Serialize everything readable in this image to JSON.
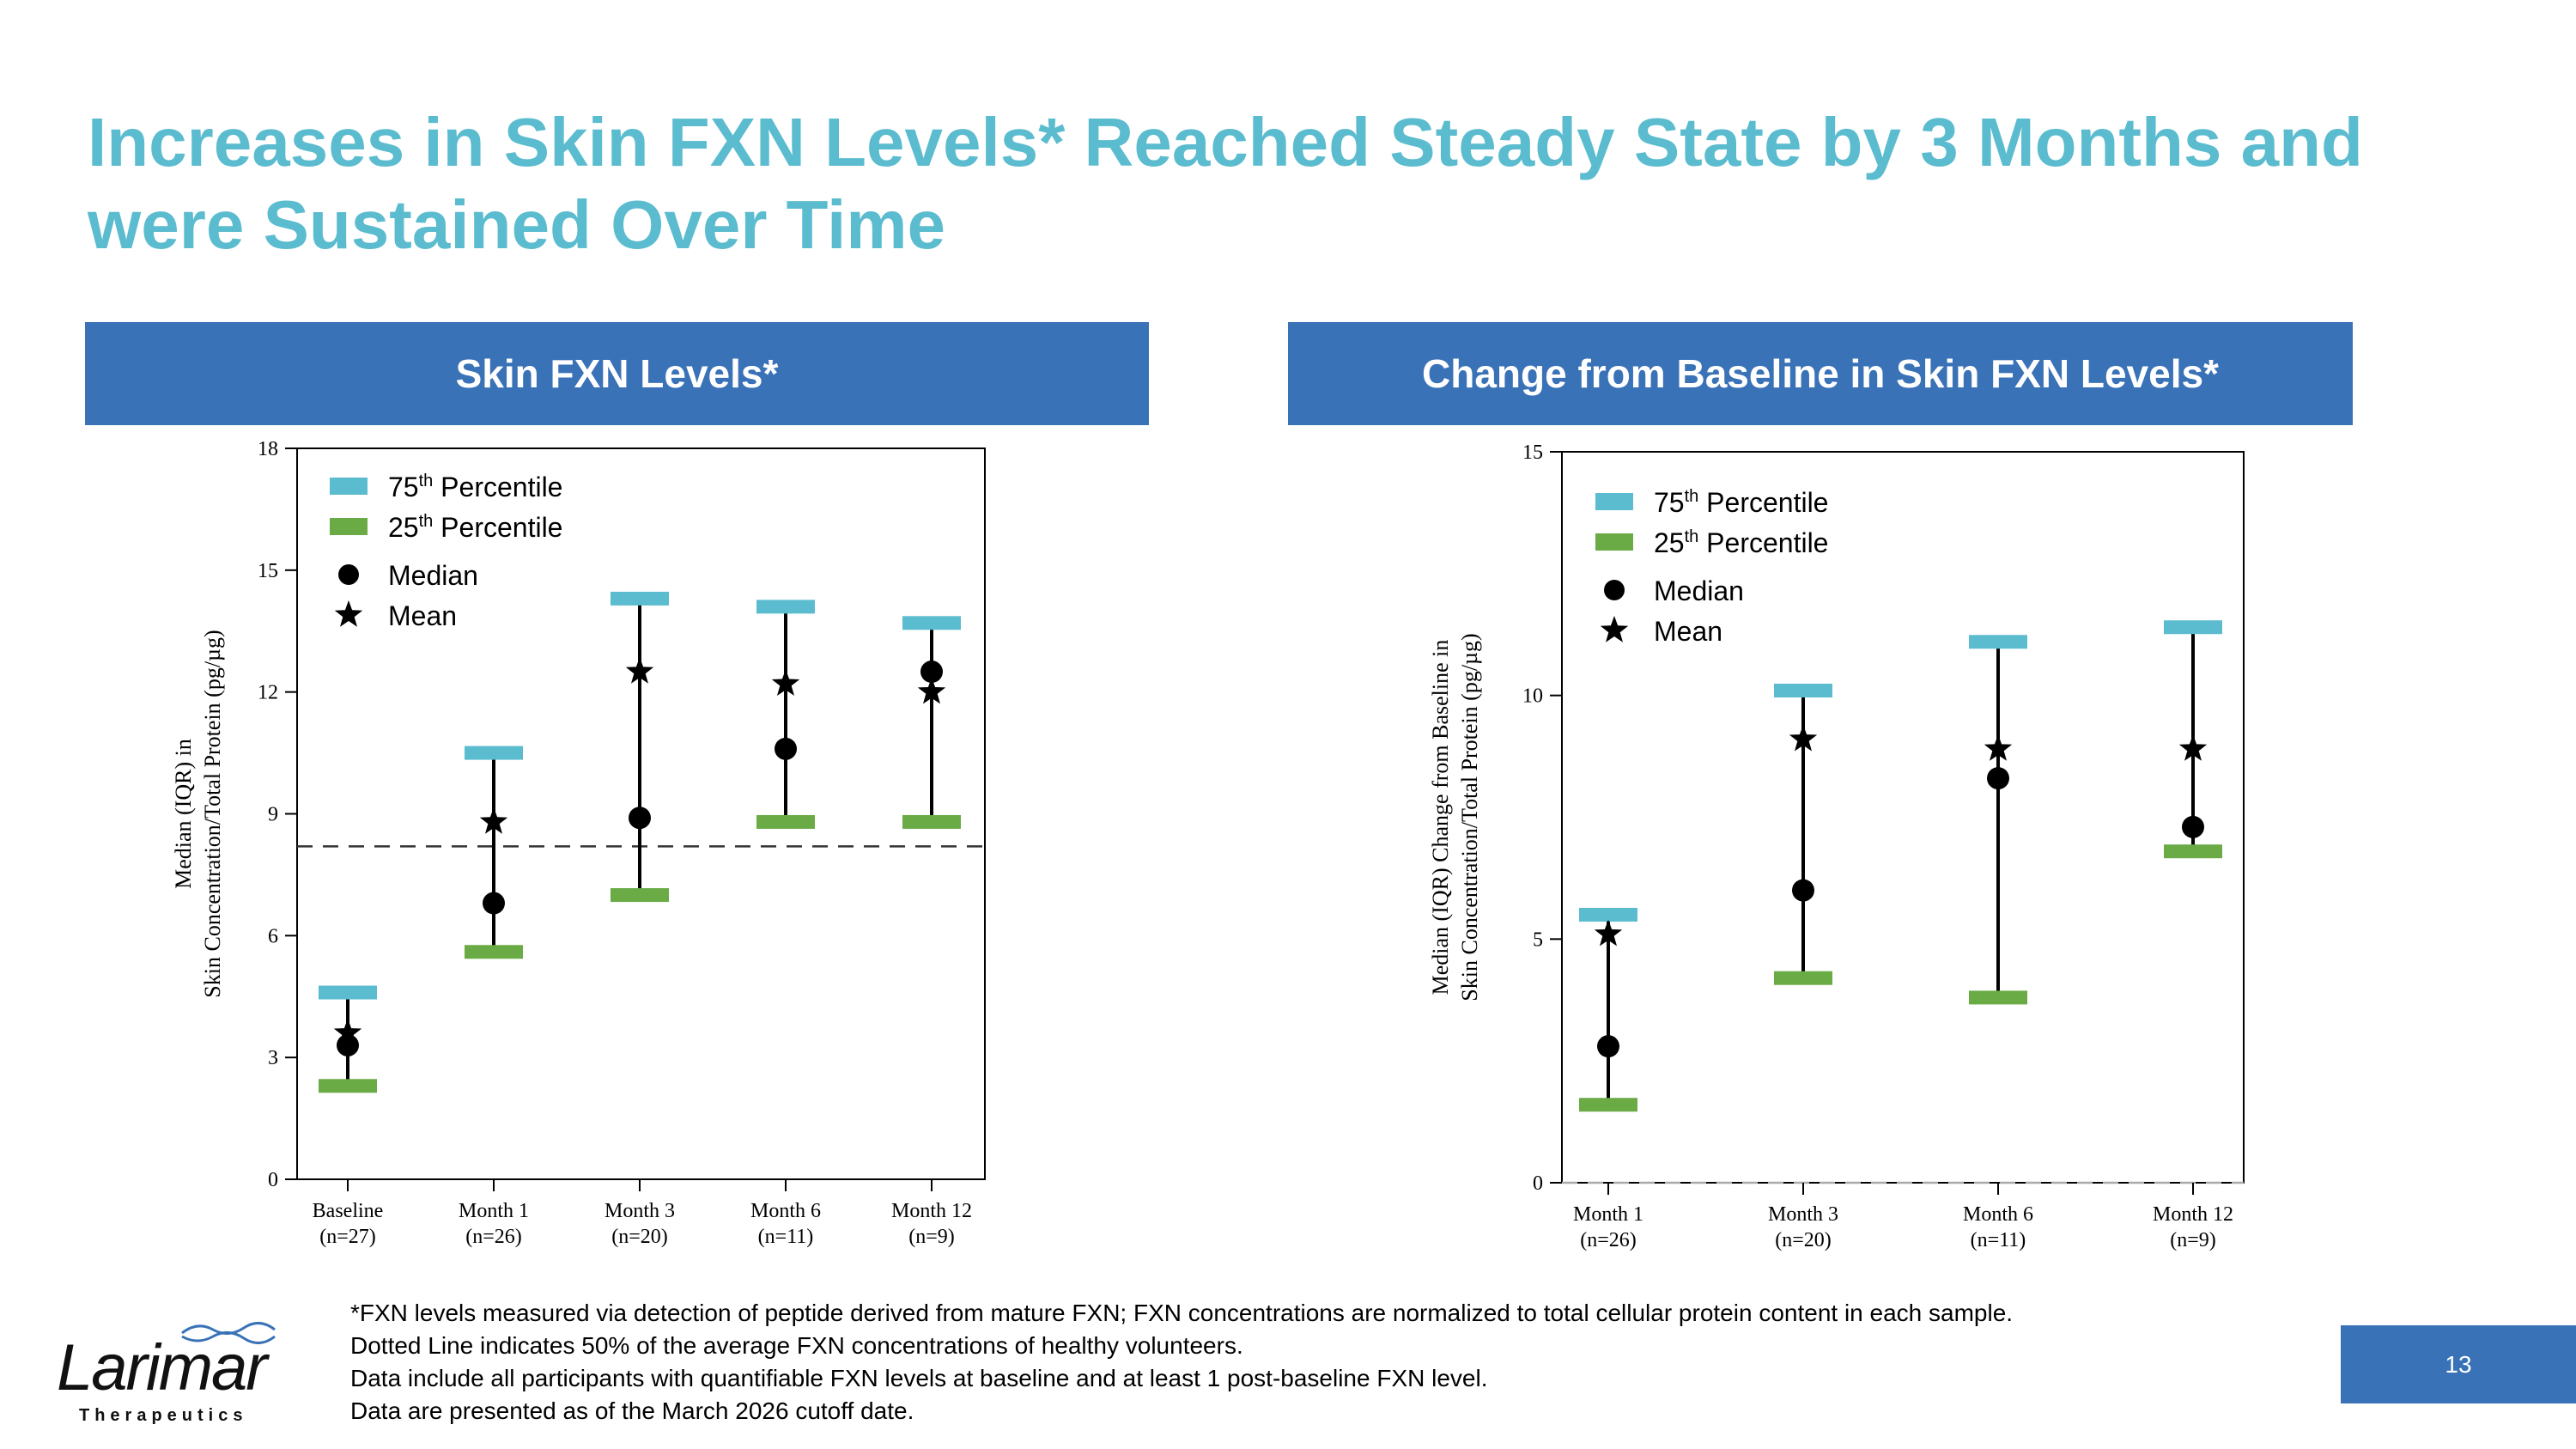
{
  "title": "Increases in Skin FXN Levels* Reached Steady State by 3 Months and were Sustained Over Time",
  "panels": {
    "left_header": "Skin FXN Levels*",
    "right_header": "Change from Baseline in Skin FXN Levels*"
  },
  "legend": {
    "p75": "75",
    "p75_sup": "th",
    "p75_text": "Percentile",
    "p25": "25",
    "p25_sup": "th",
    "p25_text": "Percentile",
    "median": "Median",
    "mean": "Mean",
    "colors": {
      "p75": "#5bbccf",
      "p25": "#6aab46"
    }
  },
  "chart_data": [
    {
      "type": "scatter",
      "title": "Skin FXN Levels*",
      "ylabel_line1": "Median (IQR) in",
      "ylabel_line2": "Skin Concentration/Total Protein (pg/µg)",
      "ylim": [
        0,
        18
      ],
      "yticks": [
        "0",
        "3",
        "6",
        "9",
        "12",
        "15",
        "18"
      ],
      "categories": [
        "Baseline",
        "Month 1",
        "Month 3",
        "Month 6",
        "Month 12"
      ],
      "n_labels": [
        "(n=27)",
        "(n=26)",
        "(n=20)",
        "(n=11)",
        "(n=9)"
      ],
      "p75": [
        4.6,
        10.5,
        14.3,
        14.1,
        13.7
      ],
      "p25": [
        2.3,
        5.6,
        7.0,
        8.8,
        8.8
      ],
      "median": [
        3.3,
        6.8,
        8.9,
        10.6,
        12.5
      ],
      "mean": [
        3.6,
        8.8,
        12.5,
        12.2,
        12.0
      ],
      "reference_line": 8.2,
      "grid": false
    },
    {
      "type": "scatter",
      "title": "Change from Baseline in Skin FXN Levels*",
      "ylabel_line1": "Median (IQR) Change from Baseline in",
      "ylabel_line2": "Skin Concentration/Total Protein (pg/µg)",
      "ylim": [
        0,
        15
      ],
      "yticks": [
        "0",
        "5",
        "10",
        "15"
      ],
      "categories": [
        "Month 1",
        "Month 3",
        "Month 6",
        "Month 12"
      ],
      "n_labels": [
        "(n=26)",
        "(n=20)",
        "(n=11)",
        "(n=9)"
      ],
      "p75": [
        5.5,
        10.1,
        11.1,
        11.4
      ],
      "p25": [
        1.6,
        4.2,
        3.8,
        6.8
      ],
      "median": [
        2.8,
        6.0,
        8.3,
        7.3
      ],
      "mean": [
        5.1,
        9.1,
        8.9,
        8.9
      ],
      "reference_line": 0,
      "grid": false
    }
  ],
  "footnotes": [
    "*FXN levels measured via detection of peptide derived from mature FXN; FXN concentrations are normalized to total cellular protein content in each sample.",
    "Dotted Line indicates 50% of the average FXN concentrations of healthy volunteers.",
    "Data include all participants with quantifiable FXN levels at baseline and at least 1 post-baseline FXN level.",
    "Data are presented as of the March 2026 cutoff date."
  ],
  "logo": {
    "name": "Larimar",
    "tagline": "Therapeutics"
  },
  "page_number": "13"
}
